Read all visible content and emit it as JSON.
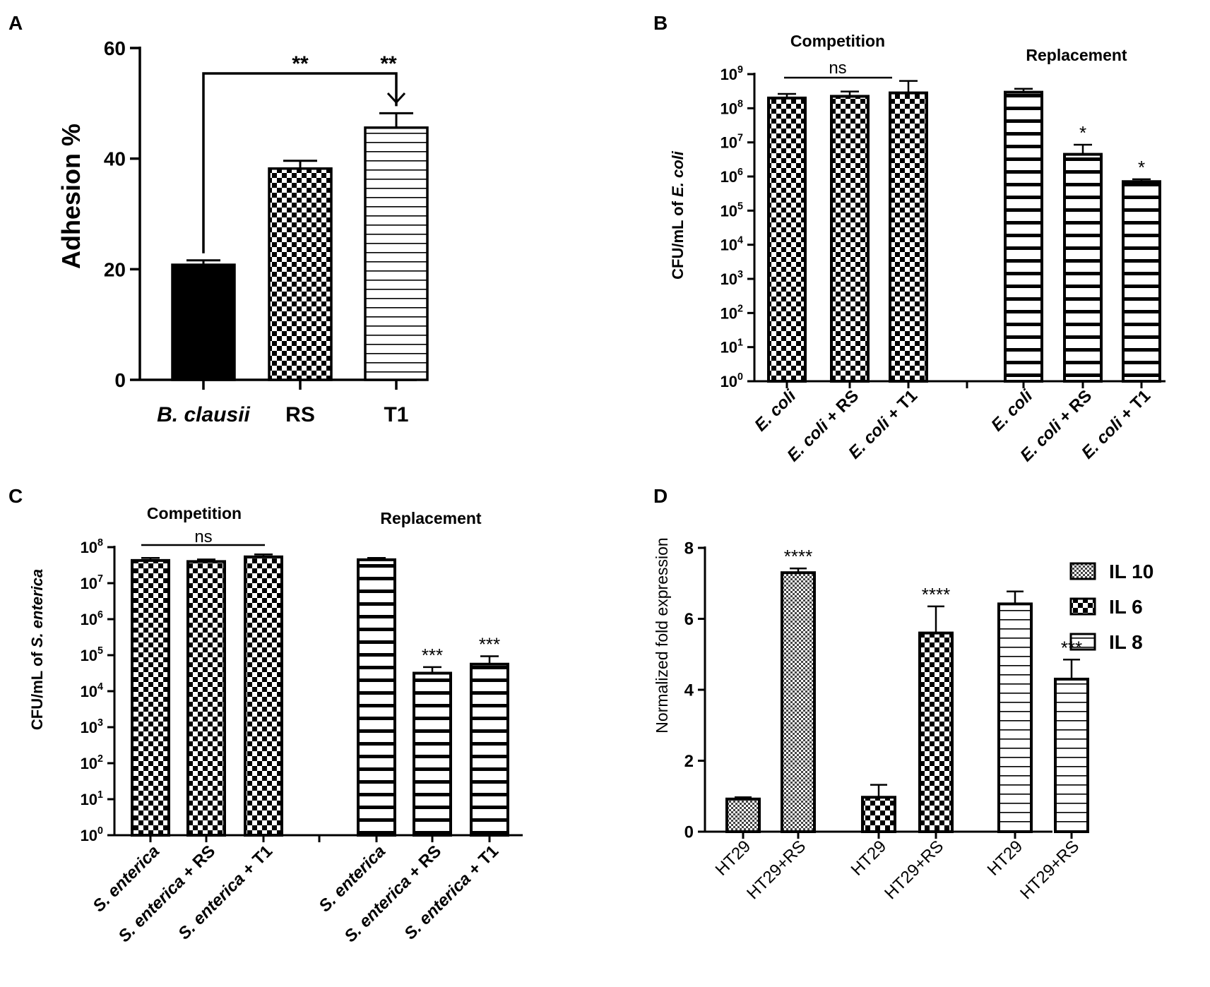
{
  "chart_data": [
    {
      "panel_label": "A",
      "type": "bar",
      "title": "",
      "ylabel": "Adhesion %",
      "xlabel": "",
      "ylim": [
        0,
        60
      ],
      "yticks": [
        "0",
        "20",
        "40",
        "60"
      ],
      "categories": [
        "B. clausii",
        "RS",
        "T1"
      ],
      "values": [
        20.8,
        38.2,
        45.6
      ],
      "errors": [
        0.8,
        1.4,
        2.6
      ],
      "patterns": [
        "solid",
        "check",
        "hstripe"
      ],
      "significance": [
        "**",
        "**"
      ]
    },
    {
      "panel_label": "B",
      "type": "bar",
      "yscale": "log",
      "ylabel_prefix": "CFU/mL of ",
      "ylabel_italic": "E. coli",
      "ylim": [
        0,
        9
      ],
      "yticks": [
        "10",
        "10",
        "10",
        "10",
        "10",
        "10",
        "10",
        "10",
        "10",
        "10"
      ],
      "ytick_exponents": [
        "0",
        "1",
        "2",
        "3",
        "4",
        "5",
        "6",
        "7",
        "8",
        "9"
      ],
      "group_labels": [
        "Competition",
        "Replacement"
      ],
      "categories": [
        {
          "italic": "E. coli",
          "suffix": ""
        },
        {
          "italic": "E. coli",
          "suffix": " + RS"
        },
        {
          "italic": "E. coli",
          "suffix": " + T1"
        },
        {
          "italic": "E. coli",
          "suffix": ""
        },
        {
          "italic": "E. coli",
          "suffix": " + RS"
        },
        {
          "italic": "E. coli",
          "suffix": " + T1"
        }
      ],
      "values_log10": [
        8.3,
        8.35,
        8.45,
        8.47,
        6.65,
        5.85
      ],
      "errors_log10": [
        0.12,
        0.14,
        0.35,
        0.1,
        0.28,
        0.07
      ],
      "patterns": [
        "check",
        "check",
        "check",
        "hstripe",
        "hstripe",
        "hstripe"
      ],
      "significance": [
        "ns",
        "",
        "",
        "",
        "*",
        "*"
      ]
    },
    {
      "panel_label": "C",
      "type": "bar",
      "yscale": "log",
      "ylabel_prefix": "CFU/mL of ",
      "ylabel_italic": "S. enterica",
      "ylim": [
        0,
        8
      ],
      "yticks": [
        "10",
        "10",
        "10",
        "10",
        "10",
        "10",
        "10",
        "10",
        "10"
      ],
      "ytick_exponents": [
        "0",
        "1",
        "2",
        "3",
        "4",
        "5",
        "6",
        "7",
        "8"
      ],
      "group_labels": [
        "Competition",
        "Replacement"
      ],
      "categories": [
        {
          "italic": "S. enterica",
          "suffix": ""
        },
        {
          "italic": "S. enterica",
          "suffix": " + RS"
        },
        {
          "italic": "S. enterica",
          "suffix": " + T1"
        },
        {
          "italic": "S. enterica",
          "suffix": ""
        },
        {
          "italic": "S. enterica",
          "suffix": " + RS"
        },
        {
          "italic": "S. enterica",
          "suffix": " + T1"
        }
      ],
      "values_log10": [
        7.63,
        7.6,
        7.73,
        7.65,
        4.5,
        4.75
      ],
      "errors_log10": [
        0.07,
        0.06,
        0.07,
        0.05,
        0.17,
        0.22
      ],
      "patterns": [
        "check",
        "check",
        "check",
        "hstripe",
        "hstripe",
        "hstripe"
      ],
      "significance": [
        "ns",
        "",
        "",
        "",
        "***",
        "***"
      ]
    },
    {
      "panel_label": "D",
      "type": "bar",
      "ylabel": "Normalized fold expression",
      "ylim": [
        0,
        8
      ],
      "yticks": [
        "0",
        "2",
        "4",
        "6",
        "8"
      ],
      "categories": [
        "HT29",
        "HT29+RS",
        "HT29",
        "HT29+RS",
        "HT29",
        "HT29+RS"
      ],
      "values": [
        0.92,
        7.3,
        0.97,
        5.6,
        6.42,
        4.3
      ],
      "errors": [
        0.05,
        0.12,
        0.35,
        0.75,
        0.35,
        0.55
      ],
      "series_index": [
        0,
        0,
        1,
        1,
        2,
        2
      ],
      "significance": [
        "",
        "****",
        "",
        "****",
        "",
        "***"
      ],
      "legend": [
        {
          "name": "IL 10",
          "pattern": "finecheck"
        },
        {
          "name": "IL 6",
          "pattern": "check"
        },
        {
          "name": "IL 8",
          "pattern": "hstripe"
        }
      ],
      "legend_position": "right"
    }
  ]
}
